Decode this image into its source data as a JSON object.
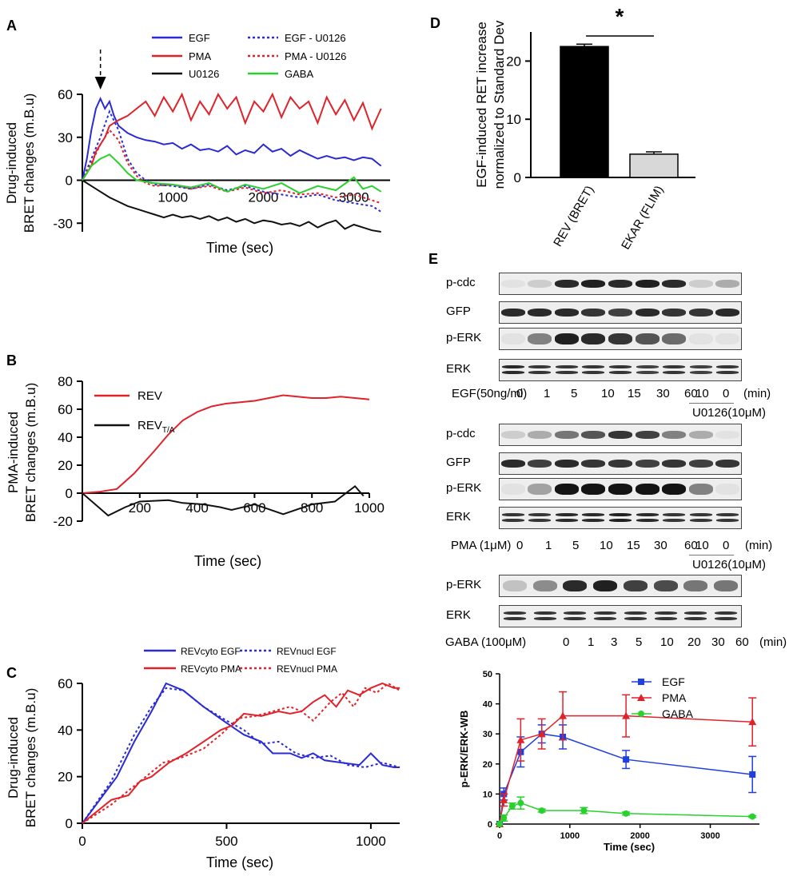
{
  "chart_data": [
    {
      "id": "A",
      "type": "line",
      "panel_label": "A",
      "xlabel": "Time (sec)",
      "ylabel_lines": [
        "Drug-induced",
        "BRET changes (m.B.u)"
      ],
      "xlim": [
        0,
        3400
      ],
      "ylim": [
        -36,
        60
      ],
      "xticks": [
        1000,
        2000,
        3000
      ],
      "yticks": [
        60,
        30,
        0,
        -30
      ],
      "arrow_x": 200,
      "series": [
        {
          "name": "EGF",
          "color": "#2b2bd6",
          "dashed": false,
          "x": [
            0,
            50,
            100,
            150,
            200,
            250,
            300,
            350,
            400,
            500,
            600,
            700,
            800,
            900,
            1000,
            1100,
            1200,
            1300,
            1400,
            1500,
            1600,
            1700,
            1800,
            1900,
            2000,
            2100,
            2200,
            2300,
            2400,
            2500,
            2600,
            2700,
            2800,
            2900,
            3000,
            3100,
            3200,
            3300
          ],
          "y": [
            0,
            15,
            35,
            50,
            57,
            50,
            55,
            45,
            38,
            33,
            30,
            28,
            27,
            25,
            26,
            22,
            25,
            21,
            22,
            20,
            24,
            18,
            21,
            19,
            25,
            20,
            22,
            17,
            21,
            18,
            15,
            17,
            15,
            16,
            14,
            16,
            15,
            10
          ]
        },
        {
          "name": "PMA",
          "color": "#e0222a",
          "dashed": false,
          "x": [
            0,
            50,
            100,
            150,
            200,
            250,
            300,
            350,
            400,
            500,
            600,
            700,
            800,
            900,
            1000,
            1100,
            1200,
            1300,
            1400,
            1500,
            1600,
            1700,
            1800,
            1900,
            2000,
            2100,
            2200,
            2300,
            2400,
            2500,
            2600,
            2700,
            2800,
            2900,
            3000,
            3100,
            3200,
            3300
          ],
          "y": [
            0,
            5,
            10,
            20,
            25,
            30,
            38,
            40,
            42,
            45,
            50,
            55,
            45,
            58,
            48,
            60,
            42,
            55,
            46,
            60,
            50,
            58,
            40,
            55,
            48,
            60,
            44,
            58,
            50,
            55,
            40,
            58,
            46,
            56,
            42,
            54,
            36,
            50
          ]
        },
        {
          "name": "U0126",
          "color": "#111111",
          "dashed": false,
          "x": [
            0,
            100,
            200,
            300,
            400,
            500,
            600,
            700,
            800,
            900,
            1000,
            1100,
            1200,
            1300,
            1400,
            1500,
            1600,
            1700,
            1800,
            1900,
            2000,
            2100,
            2200,
            2300,
            2400,
            2500,
            2600,
            2700,
            2800,
            2900,
            3000,
            3100,
            3200,
            3300
          ],
          "y": [
            0,
            -4,
            -8,
            -12,
            -15,
            -18,
            -20,
            -22,
            -24,
            -26,
            -24,
            -26,
            -25,
            -27,
            -25,
            -28,
            -26,
            -29,
            -27,
            -30,
            -28,
            -29,
            -31,
            -30,
            -32,
            -29,
            -33,
            -30,
            -28,
            -34,
            -31,
            -33,
            -35,
            -36
          ]
        },
        {
          "name": "EGF - U0126",
          "color": "#2b2bd6",
          "dashed": true,
          "x": [
            0,
            100,
            200,
            300,
            400,
            500,
            600,
            700,
            800,
            1000,
            1200,
            1400,
            1600,
            1800,
            2000,
            2200,
            2400,
            2600,
            2800,
            3000,
            3200,
            3300
          ],
          "y": [
            0,
            15,
            30,
            48,
            35,
            15,
            5,
            0,
            -3,
            -4,
            -6,
            -3,
            -7,
            -4,
            -8,
            -10,
            -12,
            -10,
            -14,
            -16,
            -18,
            -22
          ]
        },
        {
          "name": "PMA - U0126",
          "color": "#e0222a",
          "dashed": true,
          "x": [
            0,
            100,
            200,
            300,
            400,
            500,
            600,
            700,
            800,
            1000,
            1200,
            1400,
            1600,
            1800,
            2000,
            2200,
            2400,
            2600,
            2800,
            3000,
            3200,
            3300
          ],
          "y": [
            0,
            12,
            25,
            35,
            28,
            12,
            3,
            -2,
            -4,
            -3,
            -6,
            -4,
            -8,
            -5,
            -9,
            -7,
            -10,
            -9,
            -12,
            -10,
            -14,
            -16
          ]
        },
        {
          "name": "GABA",
          "color": "#29d12f",
          "dashed": false,
          "x": [
            0,
            100,
            200,
            300,
            400,
            500,
            600,
            800,
            1000,
            1200,
            1400,
            1600,
            1800,
            2000,
            2200,
            2400,
            2600,
            2800,
            3000,
            3100,
            3200,
            3300
          ],
          "y": [
            0,
            10,
            15,
            18,
            12,
            5,
            0,
            -2,
            -3,
            -5,
            -2,
            -8,
            -3,
            -6,
            -2,
            -9,
            -4,
            -7,
            2,
            -6,
            -4,
            -8
          ]
        }
      ]
    },
    {
      "id": "B",
      "type": "line",
      "panel_label": "B",
      "xlabel": "Time (sec)",
      "ylabel_lines": [
        "PMA-induced",
        "BRET changes (m.B.u)"
      ],
      "xlim": [
        0,
        1000
      ],
      "ylim": [
        -20,
        80
      ],
      "xticks": [
        200,
        400,
        600,
        800,
        1000
      ],
      "yticks": [
        80,
        60,
        40,
        20,
        0,
        -20
      ],
      "series": [
        {
          "name": "REV",
          "color": "#e0222a",
          "dashed": false,
          "x": [
            0,
            60,
            120,
            180,
            250,
            300,
            350,
            400,
            450,
            500,
            550,
            600,
            650,
            700,
            750,
            800,
            850,
            900,
            950,
            1000
          ],
          "y": [
            0,
            1,
            3,
            14,
            30,
            42,
            52,
            58,
            62,
            64,
            65,
            66,
            68,
            70,
            69,
            68,
            68,
            69,
            68,
            67
          ]
        },
        {
          "name": "REV",
          "sub": "T/A",
          "color": "#111111",
          "dashed": false,
          "x": [
            0,
            90,
            150,
            200,
            300,
            350,
            420,
            480,
            520,
            600,
            700,
            800,
            880,
            950,
            980
          ],
          "y": [
            0,
            -16,
            -10,
            -6,
            -5,
            -7,
            -8,
            -10,
            -12,
            -8,
            -15,
            -8,
            -6,
            5,
            -2
          ]
        }
      ]
    },
    {
      "id": "C",
      "type": "line",
      "panel_label": "C",
      "xlabel": "Time (sec)",
      "ylabel_lines": [
        "Drug-induced",
        "BRET changes (m.B.u)"
      ],
      "xlim": [
        0,
        1100
      ],
      "ylim": [
        0,
        60
      ],
      "xticks": [
        0,
        500,
        1000
      ],
      "yticks": [
        60,
        40,
        20,
        0
      ],
      "series": [
        {
          "name": "REVcyto EGF",
          "color": "#2b2bd6",
          "dashed": false,
          "x": [
            0,
            120,
            180,
            240,
            290,
            350,
            420,
            500,
            560,
            620,
            660,
            720,
            760,
            800,
            840,
            900,
            960,
            1000,
            1040,
            1080,
            1100
          ],
          "y": [
            0,
            20,
            35,
            48,
            60,
            57,
            50,
            43,
            38,
            35,
            30,
            30,
            28,
            30,
            27,
            26,
            25,
            30,
            25,
            24,
            24
          ]
        },
        {
          "name": "REVcyto PMA",
          "color": "#e0222a",
          "dashed": false,
          "x": [
            0,
            100,
            160,
            200,
            240,
            300,
            360,
            420,
            480,
            520,
            560,
            620,
            680,
            720,
            760,
            800,
            840,
            880,
            920,
            960,
            1000,
            1040,
            1080,
            1100
          ],
          "y": [
            0,
            10,
            12,
            18,
            20,
            26,
            30,
            35,
            40,
            42,
            47,
            46,
            48,
            47,
            48,
            52,
            55,
            50,
            57,
            55,
            58,
            60,
            58,
            58
          ]
        },
        {
          "name": "REVnucl EGF",
          "color": "#2b2bd6",
          "dashed": true,
          "x": [
            0,
            100,
            180,
            240,
            290,
            350,
            420,
            500,
            560,
            620,
            680,
            740,
            800,
            860,
            920,
            980,
            1040,
            1100
          ],
          "y": [
            0,
            18,
            38,
            50,
            58,
            57,
            50,
            44,
            40,
            34,
            35,
            30,
            28,
            29,
            25,
            24,
            26,
            24
          ]
        },
        {
          "name": "REVnucl PMA",
          "color": "#e0222a",
          "dashed": true,
          "x": [
            0,
            100,
            160,
            220,
            280,
            340,
            420,
            480,
            540,
            600,
            660,
            720,
            760,
            800,
            860,
            900,
            940,
            980,
            1020,
            1060,
            1100
          ],
          "y": [
            0,
            8,
            14,
            20,
            26,
            28,
            32,
            38,
            45,
            46,
            48,
            50,
            48,
            44,
            52,
            56,
            50,
            58,
            56,
            60,
            57
          ]
        }
      ]
    },
    {
      "id": "D",
      "type": "bar",
      "panel_label": "D",
      "ylabel_lines": [
        "EGF-induced RET increase",
        "normalized to Standard Dev"
      ],
      "categories": [
        "REV (BRET)",
        "EKAR (FLIM)"
      ],
      "values": [
        22.5,
        4.0
      ],
      "errors": [
        0.4,
        0.4
      ],
      "colors": [
        "#000000",
        "#d8d8d8"
      ],
      "ylim": [
        0,
        25
      ],
      "yticks": [
        20,
        10,
        0
      ],
      "significance": "*"
    },
    {
      "id": "E-quant",
      "type": "line",
      "xlabel": "Time (sec)",
      "ylabel": "p-ERK/ERK-WB",
      "xlim": [
        0,
        3700
      ],
      "ylim": [
        0,
        50
      ],
      "xticks": [
        0,
        1000,
        2000,
        3000
      ],
      "yticks": [
        0,
        10,
        20,
        30,
        40,
        50
      ],
      "series": [
        {
          "name": "EGF",
          "color": "#1f3fe0",
          "marker": "square",
          "x": [
            0,
            60,
            300,
            600,
            900,
            1800,
            3600
          ],
          "y": [
            0,
            10,
            24,
            30,
            29,
            21.5,
            16.5
          ],
          "err": [
            0,
            2,
            5,
            3,
            4,
            3,
            6
          ]
        },
        {
          "name": "PMA",
          "color": "#e0222a",
          "marker": "triangle",
          "x": [
            0,
            60,
            300,
            600,
            900,
            1800,
            3600
          ],
          "y": [
            0,
            8,
            28,
            30,
            36,
            36,
            34
          ],
          "err": [
            0,
            2,
            7,
            5,
            8,
            7,
            8
          ]
        },
        {
          "name": "GABA",
          "color": "#29d12f",
          "marker": "circle",
          "x": [
            0,
            60,
            180,
            300,
            600,
            1200,
            1800,
            3600
          ],
          "y": [
            0,
            2,
            6,
            7,
            4.5,
            4.5,
            3.5,
            2.5
          ],
          "err": [
            0,
            1,
            1,
            2,
            0.5,
            1,
            0.5,
            0.3
          ]
        }
      ]
    }
  ],
  "blots": {
    "panel_label": "E",
    "group1": {
      "rows": [
        "p-cdc",
        "GFP",
        "p-ERK",
        "ERK"
      ],
      "treatment": "EGF(50ng/ml)",
      "lanes": [
        "0",
        "1",
        "5",
        "10",
        "15",
        "30",
        "60",
        "10",
        "0"
      ],
      "unit": "(min)",
      "inhibitor": "U0126(10μM)",
      "intensity": {
        "p-cdc": [
          0.05,
          0.15,
          0.9,
          0.95,
          0.9,
          0.95,
          0.9,
          0.15,
          0.3
        ],
        "GFP": [
          0.9,
          0.9,
          0.9,
          0.85,
          0.8,
          0.9,
          0.85,
          0.85,
          0.9
        ],
        "p-ERK": [
          0.05,
          0.5,
          0.95,
          0.9,
          0.85,
          0.7,
          0.6,
          0.05,
          0.05
        ],
        "ERK": [
          0.9,
          0.85,
          0.85,
          0.85,
          0.85,
          0.8,
          0.85,
          0.8,
          0.85
        ]
      }
    },
    "group2": {
      "rows": [
        "p-cdc",
        "GFP",
        "p-ERK",
        "ERK"
      ],
      "treatment": "PMA (1μM)",
      "lanes": [
        "0",
        "1",
        "5",
        "10",
        "15",
        "30",
        "60",
        "10",
        "0"
      ],
      "unit": "(min)",
      "inhibitor": "U0126(10μM)",
      "intensity": {
        "p-cdc": [
          0.15,
          0.3,
          0.55,
          0.7,
          0.85,
          0.8,
          0.5,
          0.3,
          0.05
        ],
        "GFP": [
          0.9,
          0.8,
          0.9,
          0.85,
          0.85,
          0.8,
          0.85,
          0.8,
          0.85
        ],
        "p-ERK": [
          0.05,
          0.35,
          1,
          1,
          1,
          1,
          1,
          0.5,
          0.05
        ],
        "ERK": [
          0.85,
          0.85,
          0.9,
          0.9,
          0.95,
          0.9,
          0.85,
          0.85,
          0.85
        ]
      }
    },
    "group3": {
      "rows": [
        "p-ERK",
        "ERK"
      ],
      "treatment": "GABA (100μM)",
      "lanes": [
        "0",
        "1",
        "3",
        "5",
        "10",
        "20",
        "30",
        "60"
      ],
      "unit": "(min)",
      "intensity": {
        "p-ERK": [
          0.2,
          0.45,
          0.9,
          0.95,
          0.8,
          0.75,
          0.55,
          0.55
        ],
        "ERK": [
          0.85,
          0.85,
          0.85,
          0.85,
          0.85,
          0.85,
          0.85,
          0.85
        ]
      }
    }
  }
}
